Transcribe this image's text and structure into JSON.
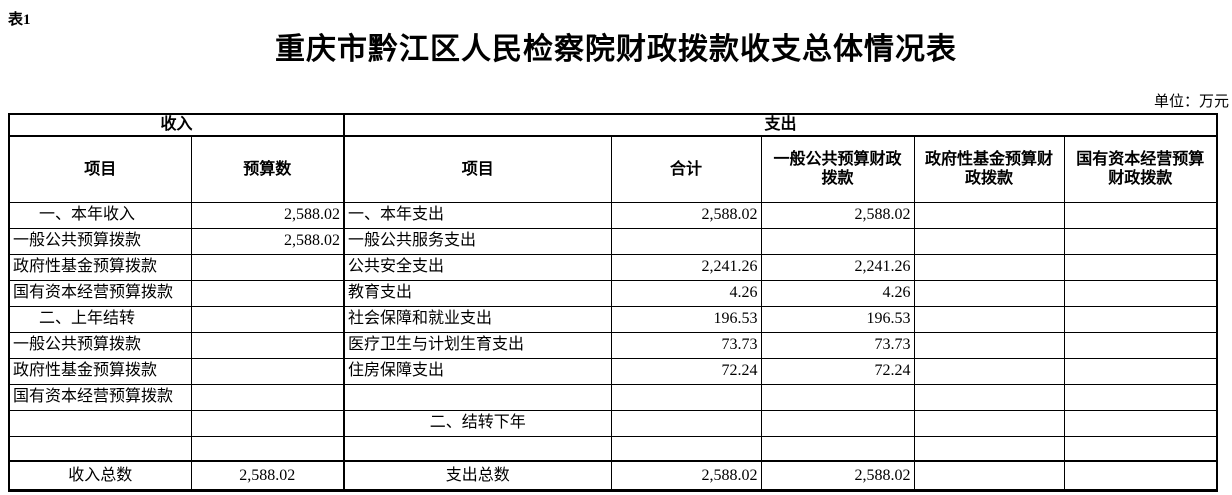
{
  "header": {
    "table_label": "表1",
    "title": "重庆市黔江区人民检察院财政拨款收支总体情况表",
    "unit_label": "单位：万元"
  },
  "colors": {
    "text": "#000000",
    "border": "#000000",
    "background": "#ffffff"
  },
  "table": {
    "group_headers": [
      "收入",
      "支出"
    ],
    "columns": [
      "项目",
      "预算数",
      "项目",
      "合计",
      "一般公共预算财政拨款",
      "政府性基金预算财政拨款",
      "国有资本经营预算财政拨款"
    ],
    "rows": [
      {
        "cells": [
          {
            "t": "一、本年收入",
            "a": "indent"
          },
          {
            "t": "2,588.02",
            "a": "right"
          },
          {
            "t": "一、本年支出",
            "a": "left"
          },
          {
            "t": "2,588.02",
            "a": "right"
          },
          {
            "t": "2,588.02",
            "a": "right"
          },
          {
            "t": "",
            "a": "right"
          },
          {
            "t": "",
            "a": "right"
          }
        ]
      },
      {
        "cells": [
          {
            "t": "一般公共预算拨款",
            "a": "left"
          },
          {
            "t": "2,588.02",
            "a": "right"
          },
          {
            "t": "一般公共服务支出",
            "a": "left"
          },
          {
            "t": "",
            "a": "right"
          },
          {
            "t": "",
            "a": "right"
          },
          {
            "t": "",
            "a": "right"
          },
          {
            "t": "",
            "a": "right"
          }
        ]
      },
      {
        "cells": [
          {
            "t": "政府性基金预算拨款",
            "a": "left"
          },
          {
            "t": "",
            "a": "right"
          },
          {
            "t": "公共安全支出",
            "a": "left"
          },
          {
            "t": "2,241.26",
            "a": "right"
          },
          {
            "t": "2,241.26",
            "a": "right"
          },
          {
            "t": "",
            "a": "right"
          },
          {
            "t": "",
            "a": "right"
          }
        ]
      },
      {
        "cells": [
          {
            "t": "国有资本经营预算拨款",
            "a": "left"
          },
          {
            "t": "",
            "a": "right"
          },
          {
            "t": "教育支出",
            "a": "left"
          },
          {
            "t": "4.26",
            "a": "right"
          },
          {
            "t": "4.26",
            "a": "right"
          },
          {
            "t": "",
            "a": "right"
          },
          {
            "t": "",
            "a": "right"
          }
        ]
      },
      {
        "cells": [
          {
            "t": "二、上年结转",
            "a": "indent"
          },
          {
            "t": "",
            "a": "right"
          },
          {
            "t": "社会保障和就业支出",
            "a": "left"
          },
          {
            "t": "196.53",
            "a": "right"
          },
          {
            "t": "196.53",
            "a": "right"
          },
          {
            "t": "",
            "a": "right"
          },
          {
            "t": "",
            "a": "right"
          }
        ]
      },
      {
        "cells": [
          {
            "t": "一般公共预算拨款",
            "a": "left"
          },
          {
            "t": "",
            "a": "right"
          },
          {
            "t": "医疗卫生与计划生育支出",
            "a": "left"
          },
          {
            "t": "73.73",
            "a": "right"
          },
          {
            "t": "73.73",
            "a": "right"
          },
          {
            "t": "",
            "a": "right"
          },
          {
            "t": "",
            "a": "right"
          }
        ]
      },
      {
        "cells": [
          {
            "t": "政府性基金预算拨款",
            "a": "left"
          },
          {
            "t": "",
            "a": "right"
          },
          {
            "t": "住房保障支出",
            "a": "left"
          },
          {
            "t": "72.24",
            "a": "right"
          },
          {
            "t": "72.24",
            "a": "right"
          },
          {
            "t": "",
            "a": "right"
          },
          {
            "t": "",
            "a": "right"
          }
        ]
      },
      {
        "cells": [
          {
            "t": "国有资本经营预算拨款",
            "a": "left"
          },
          {
            "t": "",
            "a": "right"
          },
          {
            "t": "",
            "a": "left"
          },
          {
            "t": "",
            "a": "right"
          },
          {
            "t": "",
            "a": "right"
          },
          {
            "t": "",
            "a": "right"
          },
          {
            "t": "",
            "a": "right"
          }
        ]
      },
      {
        "cells": [
          {
            "t": "",
            "a": "left"
          },
          {
            "t": "",
            "a": "right"
          },
          {
            "t": "二、结转下年",
            "a": "center"
          },
          {
            "t": "",
            "a": "right"
          },
          {
            "t": "",
            "a": "right"
          },
          {
            "t": "",
            "a": "right"
          },
          {
            "t": "",
            "a": "right"
          }
        ]
      },
      {
        "spacer": true,
        "cells": [
          {
            "t": "",
            "a": "left"
          },
          {
            "t": "",
            "a": "right"
          },
          {
            "t": "",
            "a": "left"
          },
          {
            "t": "",
            "a": "right"
          },
          {
            "t": "",
            "a": "right"
          },
          {
            "t": "",
            "a": "right"
          },
          {
            "t": "",
            "a": "right"
          }
        ]
      },
      {
        "total": true,
        "cells": [
          {
            "t": "收入总数",
            "a": "center"
          },
          {
            "t": "2,588.02",
            "a": "center"
          },
          {
            "t": "支出总数",
            "a": "center"
          },
          {
            "t": "2,588.02",
            "a": "right"
          },
          {
            "t": "2,588.02",
            "a": "right"
          },
          {
            "t": "",
            "a": "right"
          },
          {
            "t": "",
            "a": "right"
          }
        ]
      }
    ]
  }
}
